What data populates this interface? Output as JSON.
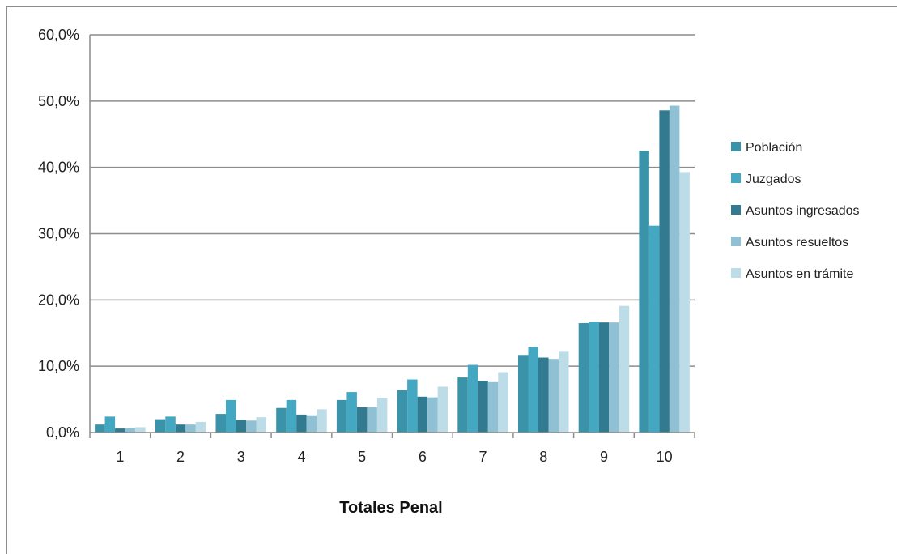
{
  "chart_data": {
    "type": "bar",
    "xlabel": "Totales Penal",
    "ylabel": "",
    "ylim": [
      0,
      60
    ],
    "yticks": [
      "0,0%",
      "10,0%",
      "20,0%",
      "30,0%",
      "40,0%",
      "50,0%",
      "60,0%"
    ],
    "ytick_values": [
      0,
      10,
      20,
      30,
      40,
      50,
      60
    ],
    "categories": [
      "1",
      "2",
      "3",
      "4",
      "5",
      "6",
      "7",
      "8",
      "9",
      "10"
    ],
    "grid": "horizontal",
    "legend_position": "right",
    "series": [
      {
        "name": "Población",
        "color": "#3a93a8",
        "values": [
          1.2,
          2.0,
          2.8,
          3.7,
          4.9,
          6.4,
          8.3,
          11.7,
          16.5,
          42.5
        ]
      },
      {
        "name": "Juzgados",
        "color": "#45a8c2",
        "values": [
          2.4,
          2.4,
          4.9,
          4.9,
          6.1,
          8.0,
          10.2,
          12.9,
          16.7,
          31.2
        ]
      },
      {
        "name": "Asuntos ingresados",
        "color": "#317a8f",
        "values": [
          0.6,
          1.2,
          1.9,
          2.7,
          3.8,
          5.4,
          7.8,
          11.3,
          16.6,
          48.6
        ]
      },
      {
        "name": "Asuntos resueltos",
        "color": "#8fc0d3",
        "values": [
          0.7,
          1.2,
          1.8,
          2.6,
          3.8,
          5.3,
          7.6,
          11.1,
          16.6,
          49.3
        ]
      },
      {
        "name": "Asuntos en trámite",
        "color": "#bcdce7",
        "values": [
          0.8,
          1.6,
          2.3,
          3.5,
          5.2,
          6.9,
          9.1,
          12.3,
          19.1,
          39.3
        ]
      }
    ]
  }
}
